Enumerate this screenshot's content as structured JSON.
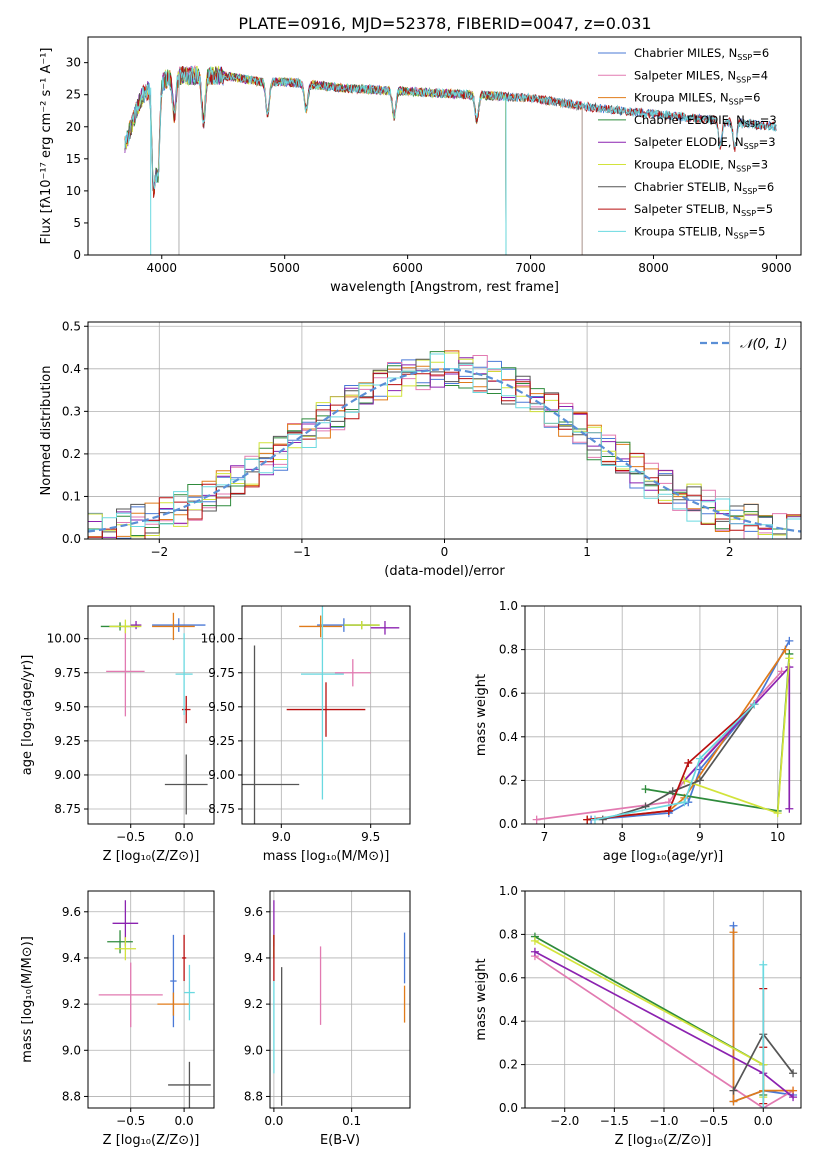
{
  "figure": {
    "title": "PLATE=0916, MJD=52378, FIBERID=0047, z=0.031"
  },
  "colors": {
    "Chabrier MILES": "#4a79d6",
    "Salpeter MILES": "#e27ab1",
    "Kroupa MILES": "#e07b1a",
    "Chabrier ELODIE": "#2f8b3c",
    "Salpeter ELODIE": "#8b22b0",
    "Kroupa ELODIE": "#d2e33b",
    "Chabrier STELIB": "#555555",
    "Salpeter STELIB": "#b80f0f",
    "Kroupa STELIB": "#6ad9e0"
  },
  "chart_data": [
    {
      "id": "spectrum",
      "type": "line",
      "xlabel": "wavelength [Angstrom, rest frame]",
      "ylabel": "Flux [fλ10⁻¹⁷ erg cm⁻² s⁻¹ A⁻¹]",
      "xlim": [
        3400,
        9200
      ],
      "ylim": [
        0,
        34
      ],
      "xticks": [
        4000,
        5000,
        6000,
        7000,
        8000,
        9000
      ],
      "yticks": [
        0,
        5,
        10,
        15,
        20,
        25,
        30
      ],
      "grid": false,
      "legend_position": "top-right",
      "legend": [
        {
          "model": "Chabrier MILES",
          "label": "Chabrier MILES, N",
          "sub": "SSP",
          "value": "=6"
        },
        {
          "model": "Salpeter MILES",
          "label": "Salpeter MILES, N",
          "sub": "SSP",
          "value": "=4"
        },
        {
          "model": "Kroupa MILES",
          "label": "Kroupa MILES, N",
          "sub": "SSP",
          "value": "=6"
        },
        {
          "model": "Chabrier ELODIE",
          "label": "Chabrier ELODIE, N",
          "sub": "SSP",
          "value": "=3"
        },
        {
          "model": "Salpeter ELODIE",
          "label": "Salpeter ELODIE, N",
          "sub": "SSP",
          "value": "=3"
        },
        {
          "model": "Kroupa ELODIE",
          "label": "Kroupa ELODIE, N",
          "sub": "SSP",
          "value": "=3"
        },
        {
          "model": "Chabrier STELIB",
          "label": "Chabrier STELIB, N",
          "sub": "SSP",
          "value": "=6"
        },
        {
          "model": "Salpeter STELIB",
          "label": "Salpeter STELIB, N",
          "sub": "SSP",
          "value": "=5"
        },
        {
          "model": "Kroupa STELIB",
          "label": "Kroupa STELIB, N",
          "sub": "SSP",
          "value": "=5"
        }
      ],
      "continuum": [
        [
          3700,
          17
        ],
        [
          3750,
          20
        ],
        [
          3800,
          23
        ],
        [
          3850,
          25
        ],
        [
          3900,
          26
        ],
        [
          4000,
          27
        ],
        [
          4100,
          28
        ],
        [
          4200,
          28
        ],
        [
          4300,
          28
        ],
        [
          4500,
          28
        ],
        [
          4800,
          27
        ],
        [
          5000,
          27
        ],
        [
          5500,
          26
        ],
        [
          6000,
          25.5
        ],
        [
          6500,
          25
        ],
        [
          7000,
          24.5
        ],
        [
          7500,
          23
        ],
        [
          8000,
          22
        ],
        [
          8500,
          21
        ],
        [
          9000,
          20
        ]
      ],
      "absorption_lines": [
        [
          3934,
          16
        ],
        [
          3969,
          14
        ],
        [
          4102,
          6
        ],
        [
          4340,
          7
        ],
        [
          4861,
          5
        ],
        [
          5175,
          4
        ],
        [
          5890,
          4
        ],
        [
          6563,
          4
        ],
        [
          8542,
          4
        ],
        [
          8662,
          4
        ]
      ],
      "spikes": [
        [
          3910,
          0
        ],
        [
          4140,
          0
        ],
        [
          6800,
          0
        ],
        [
          7420,
          0
        ]
      ]
    },
    {
      "id": "residuals",
      "type": "histogram",
      "xlabel": "(data-model)/error",
      "ylabel": "Normed distribution",
      "xlim": [
        -2.5,
        2.5
      ],
      "ylim": [
        0,
        0.51
      ],
      "xticks": [
        -2,
        -1,
        0,
        1,
        2
      ],
      "yticks": [
        0.0,
        0.1,
        0.2,
        0.3,
        0.4,
        0.5
      ],
      "grid": true,
      "legend_position": "top-right",
      "reference_label": "𝒩(0, 1)",
      "reference": {
        "mean": 0,
        "sigma": 1,
        "color": "#5a8fd6"
      },
      "bin_width": 0.1
    },
    {
      "id": "age-vs-Z",
      "type": "scatter",
      "xlabel": "Z [log₁₀(Z/Z⊙)]",
      "ylabel": "age  [log₁₀(age/yr)]",
      "xlim": [
        -0.9,
        0.28
      ],
      "ylim": [
        8.64,
        10.24
      ],
      "xticks": [
        -0.5,
        0.0
      ],
      "yticks": [
        8.75,
        9.0,
        9.25,
        9.5,
        9.75,
        10.0
      ],
      "grid": true,
      "points": [
        {
          "model": "Chabrier MILES",
          "x": -0.05,
          "y": 10.1,
          "xerr": 0.25,
          "yerr": 0.05
        },
        {
          "model": "Salpeter MILES",
          "x": -0.55,
          "y": 9.76,
          "xerr": 0.18,
          "yerr": 0.33
        },
        {
          "model": "Kroupa MILES",
          "x": -0.1,
          "y": 10.09,
          "xerr": 0.2,
          "yerr": 0.1
        },
        {
          "model": "Chabrier ELODIE",
          "x": -0.6,
          "y": 10.09,
          "xerr": 0.18,
          "yerr": 0.03
        },
        {
          "model": "Salpeter ELODIE",
          "x": -0.45,
          "y": 10.1,
          "xerr": 0.05,
          "yerr": 0.03
        },
        {
          "model": "Kroupa ELODIE",
          "x": -0.55,
          "y": 10.09,
          "xerr": 0.15,
          "yerr": 0.05
        },
        {
          "model": "Chabrier STELIB",
          "x": 0.02,
          "y": 8.93,
          "xerr": 0.2,
          "yerr": 0.22
        },
        {
          "model": "Salpeter STELIB",
          "x": 0.02,
          "y": 9.48,
          "xerr": 0.04,
          "yerr": 0.1
        },
        {
          "model": "Kroupa STELIB",
          "x": 0.0,
          "y": 9.74,
          "xerr": 0.08,
          "yerr": 0.3
        }
      ]
    },
    {
      "id": "age-vs-mass",
      "type": "scatter",
      "xlabel": "mass [log₁₀(M/M⊙)]",
      "ylabel": "",
      "xlim": [
        8.78,
        9.72
      ],
      "ylim": [
        8.64,
        10.24
      ],
      "xticks": [
        9.0,
        9.5
      ],
      "yticks": [
        8.75,
        9.0,
        9.25,
        9.5,
        9.75,
        10.0
      ],
      "grid": true,
      "points": [
        {
          "model": "Chabrier MILES",
          "x": 9.35,
          "y": 10.1,
          "xerr": 0.15,
          "yerr": 0.05
        },
        {
          "model": "Salpeter MILES",
          "x": 9.4,
          "y": 9.75,
          "xerr": 0.1,
          "yerr": 0.1
        },
        {
          "model": "Kroupa MILES",
          "x": 9.22,
          "y": 10.09,
          "xerr": 0.12,
          "yerr": 0.08
        },
        {
          "model": "Chabrier ELODIE",
          "x": 9.45,
          "y": 10.1,
          "xerr": 0.1,
          "yerr": 0.03
        },
        {
          "model": "Salpeter ELODIE",
          "x": 9.58,
          "y": 10.08,
          "xerr": 0.08,
          "yerr": 0.05
        },
        {
          "model": "Kroupa ELODIE",
          "x": 9.45,
          "y": 10.1,
          "xerr": 0.1,
          "yerr": 0.03
        },
        {
          "model": "Chabrier STELIB",
          "x": 8.85,
          "y": 8.93,
          "xerr": 0.25,
          "yerr": 1.02
        },
        {
          "model": "Salpeter STELIB",
          "x": 9.25,
          "y": 9.48,
          "xerr": 0.22,
          "yerr": 0.2
        },
        {
          "model": "Kroupa STELIB",
          "x": 9.23,
          "y": 9.74,
          "xerr": 0.12,
          "yerr": 0.92
        }
      ]
    },
    {
      "id": "weight-vs-age",
      "type": "line",
      "xlabel": "age  [log₁₀(age/yr)]",
      "ylabel": "mass weight",
      "xlim": [
        6.75,
        10.3
      ],
      "ylim": [
        0,
        1.0
      ],
      "xticks": [
        7,
        8,
        9,
        10
      ],
      "yticks": [
        0.0,
        0.2,
        0.4,
        0.6,
        0.8,
        1.0
      ],
      "grid": true,
      "series": [
        {
          "model": "Chabrier MILES",
          "points": [
            [
              7.6,
              0.02
            ],
            [
              8.6,
              0.05
            ],
            [
              8.85,
              0.1
            ],
            [
              9.0,
              0.25
            ],
            [
              9.7,
              0.55
            ],
            [
              10.15,
              0.84
            ]
          ]
        },
        {
          "model": "Salpeter MILES",
          "points": [
            [
              6.9,
              0.02
            ],
            [
              8.6,
              0.1
            ],
            [
              8.8,
              0.2
            ],
            [
              10.05,
              0.7
            ]
          ]
        },
        {
          "model": "Kroupa MILES",
          "points": [
            [
              7.55,
              0.02
            ],
            [
              8.6,
              0.06
            ],
            [
              8.8,
              0.12
            ],
            [
              10.1,
              0.8
            ]
          ]
        },
        {
          "model": "Chabrier ELODIE",
          "points": [
            [
              8.3,
              0.16
            ],
            [
              10.0,
              0.06
            ],
            [
              10.15,
              0.78
            ]
          ]
        },
        {
          "model": "Salpeter ELODIE",
          "points": [
            [
              8.8,
              0.2
            ],
            [
              10.15,
              0.72
            ],
            [
              10.15,
              0.07
            ]
          ]
        },
        {
          "model": "Kroupa ELODIE",
          "points": [
            [
              8.8,
              0.2
            ],
            [
              10.0,
              0.05
            ],
            [
              10.15,
              0.76
            ]
          ]
        },
        {
          "model": "Chabrier STELIB",
          "points": [
            [
              7.75,
              0.02
            ],
            [
              8.3,
              0.08
            ],
            [
              8.65,
              0.15
            ],
            [
              9.0,
              0.2
            ],
            [
              9.7,
              0.55
            ]
          ]
        },
        {
          "model": "Salpeter STELIB",
          "points": [
            [
              7.55,
              0.02
            ],
            [
              8.6,
              0.06
            ],
            [
              8.85,
              0.28
            ],
            [
              9.7,
              0.55
            ]
          ]
        },
        {
          "model": "Kroupa STELIB",
          "points": [
            [
              7.65,
              0.02
            ],
            [
              8.8,
              0.1
            ],
            [
              9.0,
              0.3
            ],
            [
              9.7,
              0.55
            ]
          ]
        }
      ]
    },
    {
      "id": "mass-vs-Z",
      "type": "scatter",
      "xlabel": "Z [log₁₀(Z/Z⊙)]",
      "ylabel": "mass [log₁₀(M/M⊙)]",
      "xlim": [
        -0.9,
        0.28
      ],
      "ylim": [
        8.75,
        9.69
      ],
      "xticks": [
        -0.5,
        0.0
      ],
      "yticks": [
        8.8,
        9.0,
        9.2,
        9.4,
        9.6
      ],
      "grid": true,
      "points": [
        {
          "model": "Chabrier MILES",
          "x": -0.1,
          "y": 9.3,
          "xerr": 0.03,
          "yerr": 0.2
        },
        {
          "model": "Salpeter MILES",
          "x": -0.5,
          "y": 9.24,
          "xerr": 0.3,
          "yerr": 0.14
        },
        {
          "model": "Kroupa MILES",
          "x": -0.1,
          "y": 9.2,
          "xerr": 0.15,
          "yerr": 0.05
        },
        {
          "model": "Chabrier ELODIE",
          "x": -0.6,
          "y": 9.47,
          "xerr": 0.12,
          "yerr": 0.05
        },
        {
          "model": "Salpeter ELODIE",
          "x": -0.55,
          "y": 9.55,
          "xerr": 0.12,
          "yerr": 0.1
        },
        {
          "model": "Kroupa ELODIE",
          "x": -0.55,
          "y": 9.44,
          "xerr": 0.1,
          "yerr": 0.05
        },
        {
          "model": "Chabrier STELIB",
          "x": 0.05,
          "y": 8.85,
          "xerr": 0.2,
          "yerr": 0.1
        },
        {
          "model": "Salpeter STELIB",
          "x": 0.0,
          "y": 9.4,
          "xerr": 0.02,
          "yerr": 0.1
        },
        {
          "model": "Kroupa STELIB",
          "x": 0.05,
          "y": 9.25,
          "xerr": 0.05,
          "yerr": 0.12
        }
      ]
    },
    {
      "id": "mass-vs-EBV",
      "type": "scatter",
      "xlabel": "E(B-V)",
      "ylabel": "",
      "xlim": [
        -0.005,
        0.175
      ],
      "ylim": [
        8.75,
        9.69
      ],
      "xticks": [
        0.0,
        0.1
      ],
      "yticks": [
        8.8,
        9.0,
        9.2,
        9.4,
        9.6
      ],
      "grid": true,
      "points": [
        {
          "model": "Chabrier MILES",
          "x": 0.168,
          "y": 9.4,
          "xerr": 0,
          "yerr": 0.11
        },
        {
          "model": "Salpeter MILES",
          "x": 0.06,
          "y": 9.28,
          "xerr": 0,
          "yerr": 0.17
        },
        {
          "model": "Kroupa MILES",
          "x": 0.168,
          "y": 9.2,
          "xerr": 0,
          "yerr": 0.08
        },
        {
          "model": "Chabrier ELODIE",
          "x": 0.0,
          "y": 9.45,
          "xerr": 0,
          "yerr": 0.05
        },
        {
          "model": "Salpeter ELODIE",
          "x": 0.0,
          "y": 9.55,
          "xerr": 0,
          "yerr": 0.1
        },
        {
          "model": "Kroupa ELODIE",
          "x": 0.0,
          "y": 9.45,
          "xerr": 0,
          "yerr": 0.05
        },
        {
          "model": "Chabrier STELIB",
          "x": 0.01,
          "y": 9.06,
          "xerr": 0,
          "yerr": 0.3
        },
        {
          "model": "Salpeter STELIB",
          "x": 0.0,
          "y": 9.4,
          "xerr": 0,
          "yerr": 0.1
        },
        {
          "model": "Kroupa STELIB",
          "x": 0.0,
          "y": 9.1,
          "xerr": 0,
          "yerr": 0.2
        }
      ]
    },
    {
      "id": "weight-vs-Z",
      "type": "line",
      "xlabel": "Z [log₁₀(Z/Z⊙)]",
      "ylabel": "mass weight",
      "xlim": [
        -2.4,
        0.38
      ],
      "ylim": [
        0,
        1.0
      ],
      "xticks": [
        -2.0,
        -1.5,
        -1.0,
        -0.5,
        0.0
      ],
      "yticks": [
        0.0,
        0.2,
        0.4,
        0.6,
        0.8,
        1.0
      ],
      "grid": true,
      "series": [
        {
          "model": "Chabrier MILES",
          "points": [
            [
              -0.3,
              0.84
            ],
            [
              -0.3,
              0.03
            ],
            [
              0.0,
              0.08
            ],
            [
              0.3,
              0.06
            ]
          ]
        },
        {
          "model": "Salpeter MILES",
          "points": [
            [
              -2.3,
              0.7
            ],
            [
              0.0,
              0.0
            ],
            [
              0.3,
              0.08
            ]
          ]
        },
        {
          "model": "Kroupa MILES",
          "points": [
            [
              -0.3,
              0.81
            ],
            [
              -0.3,
              0.03
            ],
            [
              0.0,
              0.08
            ],
            [
              0.3,
              0.08
            ]
          ]
        },
        {
          "model": "Chabrier ELODIE",
          "points": [
            [
              -2.3,
              0.79
            ],
            [
              0.0,
              0.2
            ],
            [
              0.0,
              0.06
            ]
          ]
        },
        {
          "model": "Salpeter ELODIE",
          "points": [
            [
              -2.3,
              0.72
            ],
            [
              0.0,
              0.16
            ],
            [
              0.3,
              0.05
            ]
          ]
        },
        {
          "model": "Kroupa ELODIE",
          "points": [
            [
              -2.3,
              0.77
            ],
            [
              0.0,
              0.2
            ],
            [
              0.0,
              0.05
            ]
          ]
        },
        {
          "model": "Chabrier STELIB",
          "points": [
            [
              -0.3,
              0.08
            ],
            [
              0.0,
              0.34
            ],
            [
              0.3,
              0.16
            ]
          ]
        },
        {
          "model": "Salpeter STELIB",
          "points": [
            [
              0.0,
              0.55
            ],
            [
              0.0,
              0.28
            ],
            [
              0.0,
              0.02
            ]
          ]
        },
        {
          "model": "Kroupa STELIB",
          "points": [
            [
              0.0,
              0.66
            ],
            [
              0.0,
              0.0
            ]
          ]
        }
      ]
    }
  ]
}
